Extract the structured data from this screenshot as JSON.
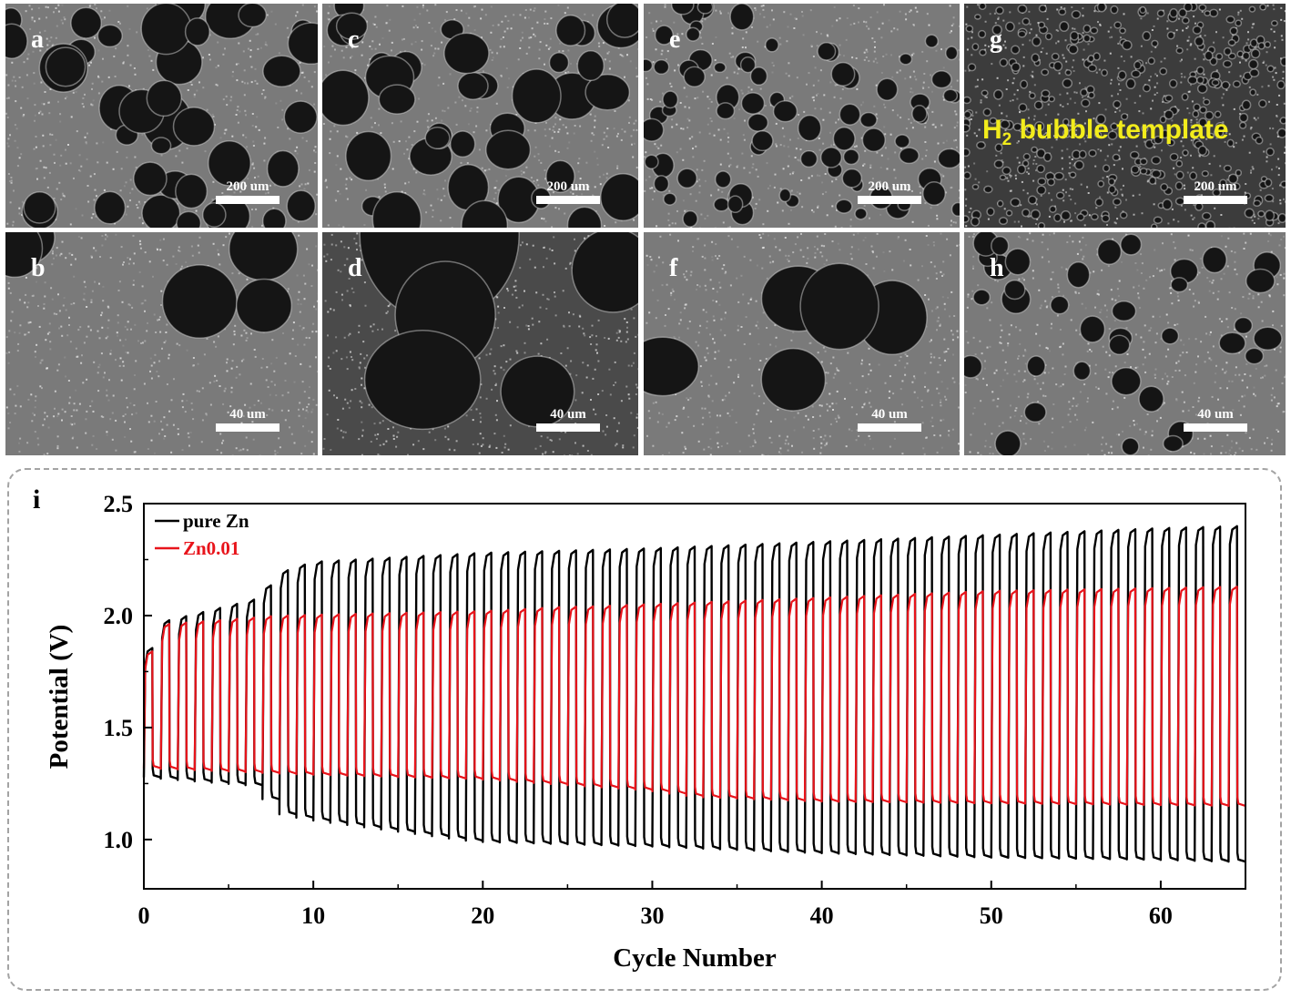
{
  "sem_panels": [
    {
      "label": "a",
      "scale": "200 um",
      "magnification": "low"
    },
    {
      "label": "c",
      "scale": "200 um",
      "magnification": "low"
    },
    {
      "label": "e",
      "scale": "200 um",
      "magnification": "low"
    },
    {
      "label": "g",
      "scale": "200 um",
      "magnification": "low",
      "overlay_main": "H",
      "overlay_sub": "2",
      "overlay_rest": " bubble template",
      "overlay_color": "#f2ec1c"
    },
    {
      "label": "b",
      "scale": "40 um",
      "magnification": "high"
    },
    {
      "label": "d",
      "scale": "40 um",
      "magnification": "high"
    },
    {
      "label": "f",
      "scale": "40 um",
      "magnification": "high"
    },
    {
      "label": "h",
      "scale": "40 um",
      "magnification": "high"
    }
  ],
  "chart_data": {
    "type": "line",
    "panel_label": "i",
    "xlabel": "Cycle Number",
    "ylabel": "Potential (V)",
    "xlim": [
      0,
      65
    ],
    "ylim": [
      0.78,
      2.5
    ],
    "xticks": [
      0,
      10,
      20,
      30,
      40,
      50,
      60
    ],
    "yticks": [
      1.0,
      1.5,
      2.0,
      2.5
    ],
    "ytick_labels": [
      "1.0",
      "1.5",
      "2.0",
      "2.5"
    ],
    "cycles": 65,
    "legend_position": "top-left",
    "series": [
      {
        "name": "pure Zn",
        "color": "#000000",
        "upper_points": [
          [
            0,
            1.74
          ],
          [
            1,
            1.97
          ],
          [
            7,
            2.08
          ],
          [
            8,
            2.19
          ],
          [
            10,
            2.24
          ],
          [
            20,
            2.28
          ],
          [
            30,
            2.3
          ],
          [
            40,
            2.33
          ],
          [
            50,
            2.36
          ],
          [
            60,
            2.39
          ],
          [
            65,
            2.4
          ]
        ],
        "lower_points": [
          [
            0,
            1.28
          ],
          [
            7,
            1.24
          ],
          [
            8,
            1.12
          ],
          [
            10,
            1.09
          ],
          [
            20,
            0.99
          ],
          [
            30,
            0.97
          ],
          [
            40,
            0.94
          ],
          [
            50,
            0.92
          ],
          [
            60,
            0.91
          ],
          [
            65,
            0.9
          ]
        ]
      },
      {
        "name": "Zn0.01",
        "color": "#e8141b",
        "upper_points": [
          [
            0,
            1.72
          ],
          [
            1,
            1.96
          ],
          [
            8,
            2.0
          ],
          [
            20,
            2.02
          ],
          [
            25,
            2.04
          ],
          [
            26,
            2.04
          ],
          [
            40,
            2.08
          ],
          [
            50,
            2.11
          ],
          [
            65,
            2.13
          ]
        ],
        "lower_points": [
          [
            0,
            1.32
          ],
          [
            10,
            1.29
          ],
          [
            20,
            1.27
          ],
          [
            30,
            1.22
          ],
          [
            33,
            1.19
          ],
          [
            40,
            1.17
          ],
          [
            65,
            1.15
          ]
        ]
      }
    ]
  }
}
